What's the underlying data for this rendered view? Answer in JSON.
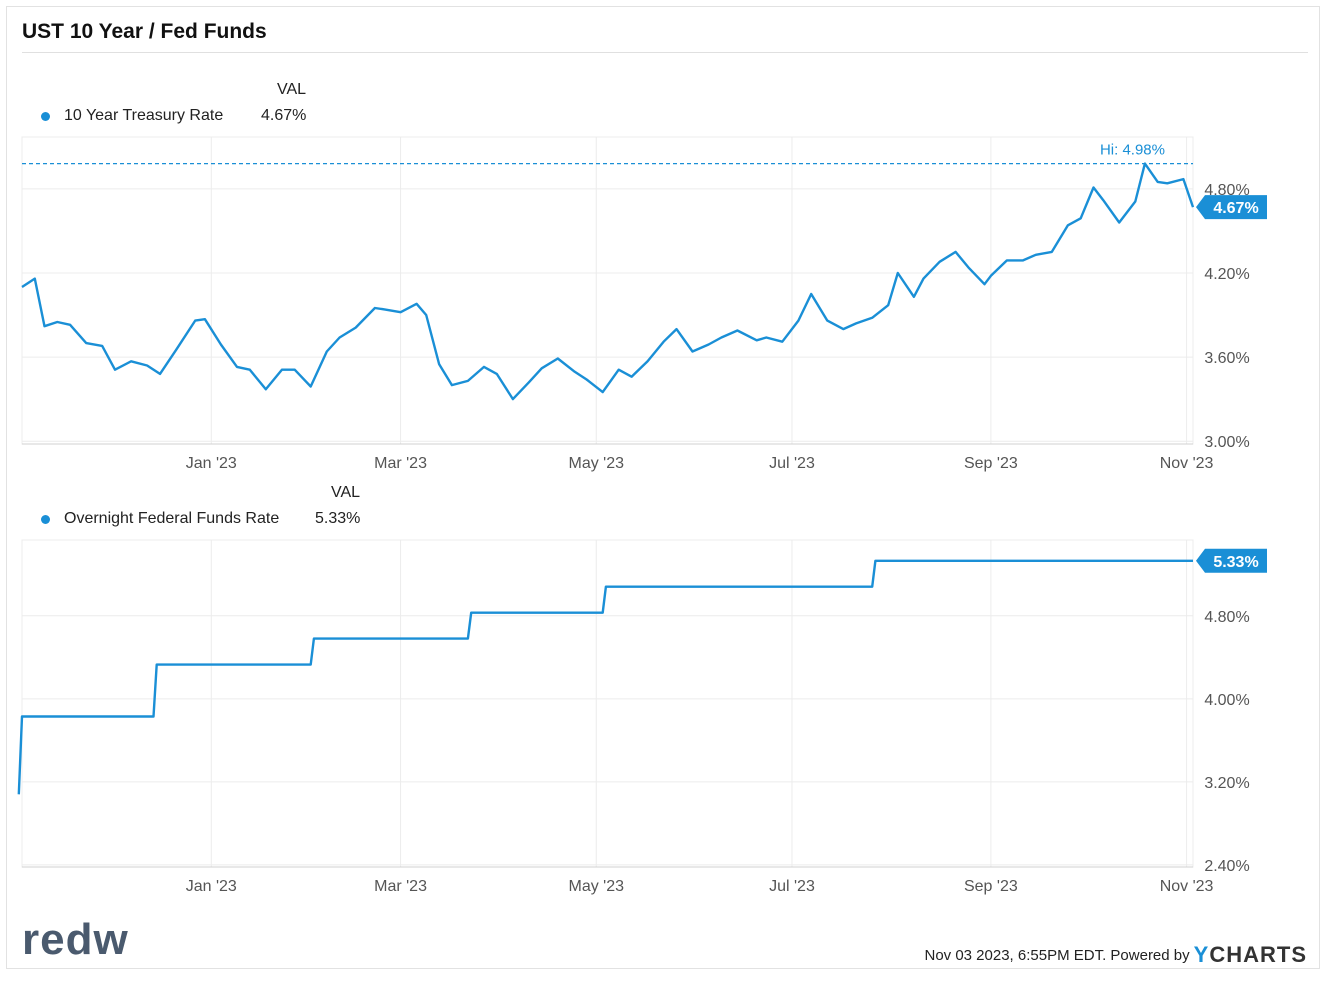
{
  "title": "UST 10 Year / Fed Funds",
  "colors": {
    "series": "#1a8fd6",
    "grid": "#ececec",
    "axis": "#d0d0d0",
    "text": "#555555"
  },
  "charts": [
    {
      "legend_header": "VAL",
      "legend_name": "10 Year Treasury Rate",
      "legend_value": "4.67%",
      "end_label": "4.67%",
      "hi_label": "Hi: 4.98%",
      "y_ticks": [
        "4.80%",
        "4.20%",
        "3.60%",
        "3.00%"
      ],
      "x_ticks": [
        "Jan '23",
        "Mar '23",
        "May '23",
        "Jul '23",
        "Sep '23",
        "Nov '23"
      ]
    },
    {
      "legend_header": "VAL",
      "legend_name": "Overnight Federal Funds Rate",
      "legend_value": "5.33%",
      "end_label": "5.33%",
      "y_ticks": [
        "4.80%",
        "4.00%",
        "3.20%",
        "2.40%"
      ],
      "x_ticks": [
        "Jan '23",
        "Mar '23",
        "May '23",
        "Jul '23",
        "Sep '23",
        "Nov '23"
      ]
    }
  ],
  "footer": {
    "timestamp": "Nov 03 2023, 6:55PM EDT. Powered by",
    "brand_y": "Y",
    "brand_rest": "CHARTS"
  },
  "logo_text": "redw",
  "chart_data": [
    {
      "type": "line",
      "title": "10 Year Treasury Rate",
      "x_range": [
        "2022-11-03",
        "2023-11-03"
      ],
      "ylim": [
        2.98,
        5.17
      ],
      "y_ticks": [
        3.0,
        3.6,
        4.2,
        4.8
      ],
      "hi": 4.98,
      "last": 4.67,
      "x": [
        "2022-11-03",
        "2022-11-07",
        "2022-11-10",
        "2022-11-14",
        "2022-11-18",
        "2022-11-23",
        "2022-11-28",
        "2022-12-02",
        "2022-12-07",
        "2022-12-12",
        "2022-12-16",
        "2022-12-21",
        "2022-12-27",
        "2022-12-30",
        "2023-01-04",
        "2023-01-09",
        "2023-01-13",
        "2023-01-18",
        "2023-01-23",
        "2023-01-27",
        "2023-02-01",
        "2023-02-06",
        "2023-02-10",
        "2023-02-15",
        "2023-02-21",
        "2023-02-24",
        "2023-03-01",
        "2023-03-06",
        "2023-03-09",
        "2023-03-13",
        "2023-03-17",
        "2023-03-22",
        "2023-03-27",
        "2023-03-31",
        "2023-04-05",
        "2023-04-10",
        "2023-04-14",
        "2023-04-19",
        "2023-04-24",
        "2023-04-28",
        "2023-05-03",
        "2023-05-08",
        "2023-05-12",
        "2023-05-17",
        "2023-05-22",
        "2023-05-26",
        "2023-05-31",
        "2023-06-05",
        "2023-06-09",
        "2023-06-14",
        "2023-06-20",
        "2023-06-23",
        "2023-06-28",
        "2023-07-03",
        "2023-07-07",
        "2023-07-12",
        "2023-07-17",
        "2023-07-21",
        "2023-07-26",
        "2023-07-31",
        "2023-08-03",
        "2023-08-08",
        "2023-08-11",
        "2023-08-16",
        "2023-08-21",
        "2023-08-25",
        "2023-08-30",
        "2023-09-01",
        "2023-09-06",
        "2023-09-11",
        "2023-09-15",
        "2023-09-20",
        "2023-09-25",
        "2023-09-29",
        "2023-10-03",
        "2023-10-06",
        "2023-10-11",
        "2023-10-16",
        "2023-10-19",
        "2023-10-23",
        "2023-10-26",
        "2023-10-31",
        "2023-11-03"
      ],
      "y": [
        4.1,
        4.16,
        3.82,
        3.85,
        3.83,
        3.7,
        3.68,
        3.51,
        3.57,
        3.54,
        3.48,
        3.65,
        3.86,
        3.87,
        3.69,
        3.53,
        3.51,
        3.37,
        3.51,
        3.51,
        3.39,
        3.64,
        3.74,
        3.81,
        3.95,
        3.94,
        3.92,
        3.98,
        3.9,
        3.55,
        3.4,
        3.43,
        3.53,
        3.48,
        3.3,
        3.42,
        3.52,
        3.59,
        3.5,
        3.44,
        3.35,
        3.51,
        3.46,
        3.57,
        3.71,
        3.8,
        3.64,
        3.69,
        3.74,
        3.79,
        3.72,
        3.74,
        3.71,
        3.86,
        4.05,
        3.86,
        3.8,
        3.84,
        3.88,
        3.97,
        4.2,
        4.03,
        4.16,
        4.28,
        4.35,
        4.24,
        4.12,
        4.18,
        4.29,
        4.29,
        4.33,
        4.35,
        4.54,
        4.59,
        4.81,
        4.72,
        4.56,
        4.71,
        4.98,
        4.85,
        4.84,
        4.87,
        4.67
      ]
    },
    {
      "type": "line",
      "title": "Overnight Federal Funds Rate",
      "x_range": [
        "2022-11-03",
        "2023-11-03"
      ],
      "ylim": [
        2.38,
        5.53
      ],
      "y_ticks": [
        2.4,
        3.2,
        4.0,
        4.8
      ],
      "last": 5.33,
      "x": [
        "2022-11-02",
        "2022-11-03",
        "2022-12-14",
        "2022-12-15",
        "2023-02-01",
        "2023-02-02",
        "2023-03-22",
        "2023-03-23",
        "2023-05-03",
        "2023-05-04",
        "2023-07-26",
        "2023-07-27",
        "2023-11-03"
      ],
      "y": [
        3.08,
        3.83,
        3.83,
        4.33,
        4.33,
        4.58,
        4.58,
        4.83,
        4.83,
        5.08,
        5.08,
        5.33,
        5.33
      ]
    }
  ]
}
